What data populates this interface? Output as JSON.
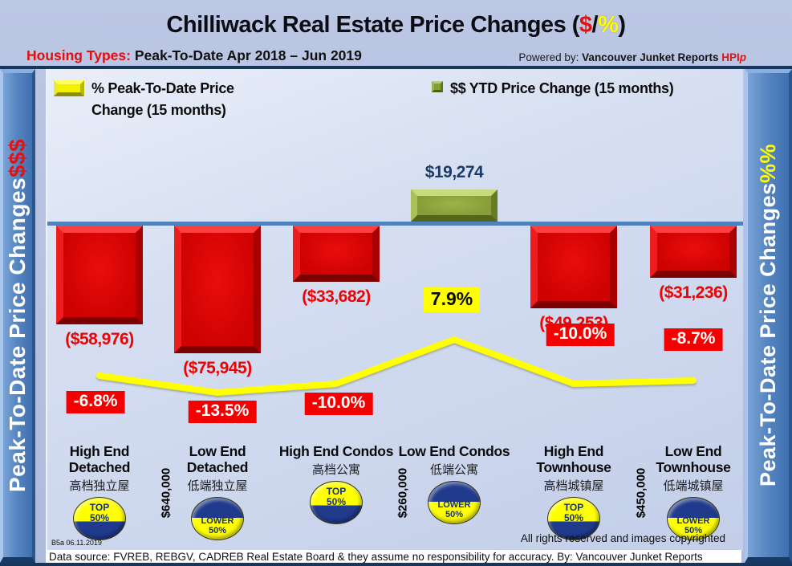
{
  "header": {
    "title_prefix": "Chilliwack Real Estate Price Changes (",
    "title_dollar": "$",
    "title_slash": "/",
    "title_percent": "%",
    "title_suffix": ")",
    "subtitle_label": "Housing Types:",
    "subtitle_text": " Peak-To-Date Apr 2018 – Jun 2019",
    "powered_label": "Powered by: ",
    "powered_brand": "Vancouver Junket Reports ",
    "powered_hpi": "HPI",
    "powered_hpi_suffix": "p"
  },
  "sidebar_left": {
    "text": "Peak-To-Date Price Changes ",
    "suffix": "$$$"
  },
  "sidebar_right": {
    "text": "Peak-To-Date  Price  Changes  ",
    "suffix": "%%"
  },
  "legend": {
    "pct_line1": "% Peak-To-Date Price",
    "pct_line2": "Change (15 months)",
    "usd_label": "$$ YTD Price Change (15 months)"
  },
  "chart_data": {
    "type": "combo-bar-line",
    "categories": [
      "High End Detached",
      "Low End Detached",
      "High End Condos",
      "Low End Condos",
      "High End Townhouse",
      "Low End Townhouse"
    ],
    "categories_zh": [
      "高档独立屋",
      "低端独立屋",
      "高档公寓",
      "低端公寓",
      "高档城镇屋",
      "低端城镇屋"
    ],
    "series": [
      {
        "name": "$$ YTD Price Change (15 months)",
        "type": "bar",
        "values": [
          -58976,
          -75945,
          -33682,
          19274,
          -49253,
          -31236
        ],
        "labels": [
          "($58,976)",
          "($75,945)",
          "($33,682)",
          "$19,274",
          "($49,253)",
          "($31,236)"
        ]
      },
      {
        "name": "% Peak-To-Date Price Change (15 months)",
        "type": "line",
        "values": [
          -6.8,
          -13.5,
          -10.0,
          7.9,
          -10.0,
          -8.7
        ],
        "labels": [
          "-6.8%",
          "-13.5%",
          "-10.0%",
          "7.9%",
          "-10.0%",
          "-8.7%"
        ]
      }
    ],
    "badges": [
      {
        "line1": "TOP",
        "line2": "50%",
        "position": "top"
      },
      {
        "line1": "LOWER",
        "line2": "50%",
        "position": "lower"
      },
      {
        "line1": "TOP",
        "line2": "50%",
        "position": "top"
      },
      {
        "line1": "LOWER",
        "line2": "50%",
        "position": "lower"
      },
      {
        "line1": "TOP",
        "line2": "50%",
        "position": "top"
      },
      {
        "line1": "LOWER",
        "line2": "50%",
        "position": "lower"
      }
    ],
    "price_markers": [
      {
        "label": "$640,000",
        "between": [
          0,
          1
        ]
      },
      {
        "label": "$260,000",
        "between": [
          2,
          3
        ]
      },
      {
        "label": "$450,000",
        "between": [
          4,
          5
        ]
      }
    ],
    "baseline_value": 0,
    "colors": {
      "bar_negative": "#d40000",
      "bar_positive": "#8da63e",
      "line": "#ffff00",
      "pct_label_negative_bg": "#f40000",
      "pct_label_positive_bg": "#ffff00",
      "value_label_negative": "#ee0202",
      "value_label_positive": "#1b3a68",
      "baseline": "#4f81bd"
    }
  },
  "footer": {
    "code": "B5a 06.11.2019",
    "rights": "All rights reserved and  images copyrighted",
    "source": "Data source: FVREB, REBGV, CADREB Real Estate Board & they assume no responsibility for accuracy. By: Vancouver Junket Reports"
  }
}
